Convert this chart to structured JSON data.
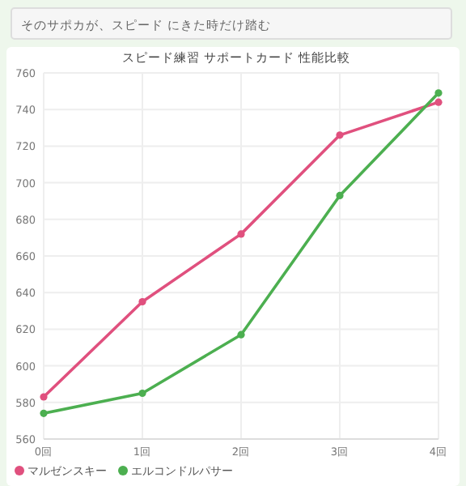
{
  "chart_data": {
    "type": "line",
    "title": "スピード練習 サポートカード 性能比較",
    "annotations": [
      "そのサポカが、スピード にきた時だけ踏む"
    ],
    "categories": [
      "0回",
      "1回",
      "2回",
      "3回",
      "4回"
    ],
    "series": [
      {
        "name": "マルゼンスキー",
        "color": "#e0507e",
        "values": [
          583,
          635,
          672,
          726,
          744
        ]
      },
      {
        "name": "エルコンドルパサー",
        "color": "#4caf50",
        "values": [
          574,
          585,
          617,
          693,
          749
        ]
      }
    ],
    "ylim": [
      560,
      760
    ],
    "yticks": [
      560,
      580,
      600,
      620,
      640,
      660,
      680,
      700,
      720,
      740,
      760
    ],
    "grid": true,
    "legend": "bottom left",
    "marker": "circle",
    "line_style": "solid"
  }
}
